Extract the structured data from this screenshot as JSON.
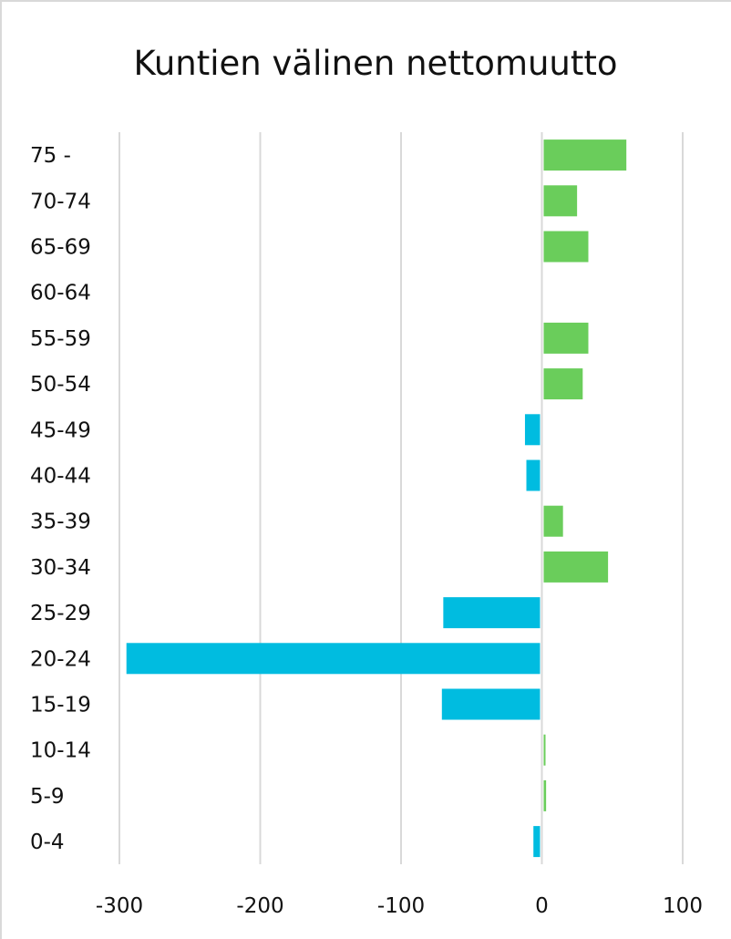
{
  "chart_data": {
    "type": "bar",
    "orientation": "horizontal",
    "title": "Kuntien välinen nettomuutto",
    "xlabel": "",
    "ylabel": "",
    "categories": [
      "75 -",
      "70-74",
      "65-69",
      "60-64",
      "55-59",
      "50-54",
      "45-49",
      "40-44",
      "35-39",
      "30-34",
      "25-29",
      "20-24",
      "15-19",
      "10-14",
      "5-9",
      "0-4"
    ],
    "values": [
      60,
      25,
      33,
      0,
      33,
      29,
      -12,
      -11,
      15,
      47,
      -70,
      -295,
      -71,
      2,
      3,
      -6
    ],
    "xlim": [
      -300,
      100
    ],
    "xticks": [
      -300,
      -200,
      -100,
      0,
      100
    ],
    "xtick_labels": [
      "-300",
      "-200",
      "-100",
      "0",
      "100"
    ],
    "grid": "vertical",
    "legend": "none",
    "colors": {
      "positive": "#6acd5b",
      "negative": "#00bce0",
      "grid": "#d9d9d9",
      "border": "#d9d9d9",
      "text": "#111111"
    }
  }
}
